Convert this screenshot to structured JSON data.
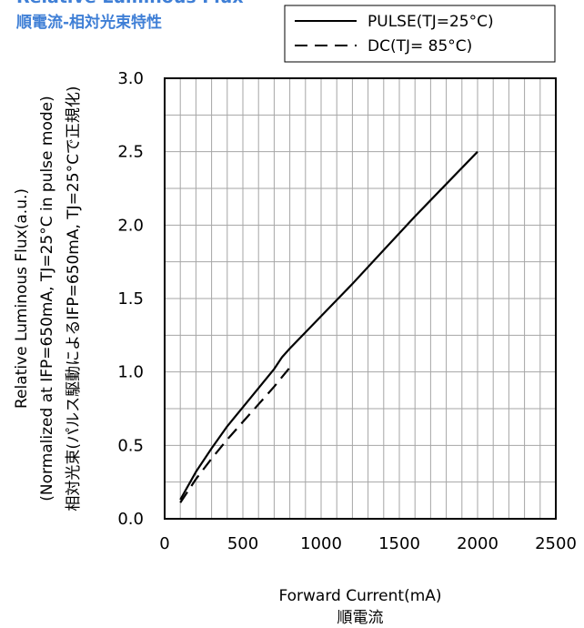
{
  "title": "Relative Luminous Flux",
  "subtitle": "順電流-相対光束特性",
  "chart_data": {
    "type": "line",
    "xlabel": "Forward Current(mA)",
    "xlabel_sub": "順電流",
    "ylabel": "Relative Luminous Flux(a.u.)",
    "ylabel_sub1": "(Normalized at IFP=650mA, TJ=25°C in pulse mode)",
    "ylabel_sub2": "相対光束(パルス駆動によるIFP=650mA, TJ=25°Cで正規化)",
    "xlim": [
      0,
      2500
    ],
    "ylim": [
      0,
      3.0
    ],
    "x_ticks": [
      "0",
      "500",
      "1000",
      "1500",
      "2000",
      "2500"
    ],
    "y_ticks": [
      "0.0",
      "0.5",
      "1.0",
      "1.5",
      "2.0",
      "2.5",
      "3.0"
    ],
    "grid": true,
    "legend_position": "top-right",
    "series": [
      {
        "name": "PULSE(TJ=25°C)",
        "line_style": "solid",
        "x": [
          100,
          200,
          300,
          400,
          500,
          600,
          700,
          750,
          800,
          1000,
          1200,
          1400,
          1600,
          1800,
          2000
        ],
        "y": [
          0.13,
          0.32,
          0.48,
          0.63,
          0.76,
          0.89,
          1.02,
          1.1,
          1.16,
          1.38,
          1.6,
          1.83,
          2.06,
          2.28,
          2.5
        ]
      },
      {
        "name": "DC(TJ= 85°C)",
        "line_style": "dashed",
        "x": [
          100,
          200,
          300,
          400,
          500,
          600,
          700,
          800
        ],
        "y": [
          0.11,
          0.27,
          0.41,
          0.54,
          0.66,
          0.78,
          0.9,
          1.03
        ]
      }
    ]
  }
}
